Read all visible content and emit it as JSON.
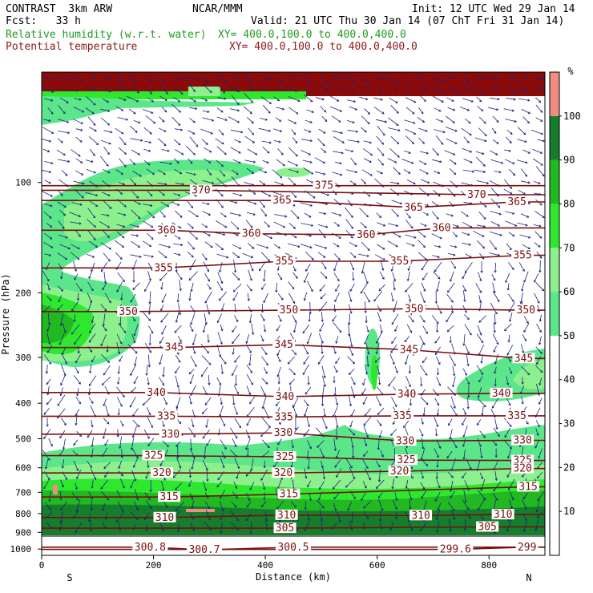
{
  "header": {
    "model": "CONTRAST  3km ARW",
    "org": "NCAR/MMM",
    "init": "Init: 12 UTC Wed 29 Jan 14",
    "fcst": "Fcst:   33 h",
    "valid": "Valid: 21 UTC Thu 30 Jan 14 (07 ChT Fri 31 Jan 14)",
    "field1": "Relative humidity (w.r.t. water)",
    "field1_xy": "XY= 400.0,100.0 to 400.0,400.0",
    "field2": "Potential temperature",
    "field2_xy": "XY= 400.0,100.0 to 400.0,400.0"
  },
  "colorbar": {
    "unit": "%",
    "ticks": [
      "10",
      "20",
      "30",
      "40",
      "50",
      "60",
      "70",
      "80",
      "90",
      "100"
    ],
    "bins": [
      {
        "from": 0,
        "to": 50,
        "color": "#ffffff"
      },
      {
        "from": 50,
        "to": 60,
        "color": "#5ce68a"
      },
      {
        "from": 60,
        "to": 70,
        "color": "#8cf08c"
      },
      {
        "from": 70,
        "to": 80,
        "color": "#2ee82e"
      },
      {
        "from": 80,
        "to": 90,
        "color": "#21b821"
      },
      {
        "from": 90,
        "to": 100,
        "color": "#157d2b"
      },
      {
        "from": 100,
        "to": 110,
        "color": "#f08c80"
      }
    ]
  },
  "chart_data": {
    "type": "heatmap",
    "xlabel": "Distance (km)",
    "ylabel": "Pressure (hPa)",
    "xlim": [
      0,
      900
    ],
    "ylim": [
      1040,
      50
    ],
    "y_scale": "log",
    "x_ticks": [
      "0",
      "200",
      "400",
      "600",
      "800"
    ],
    "y_ticks": [
      "100",
      "200",
      "300",
      "400",
      "500",
      "600",
      "700",
      "800",
      "900",
      "1000"
    ],
    "x_end_labels": {
      "left": "S",
      "right": "N"
    },
    "contour_labels": [
      {
        "text": "370",
        "x": 285,
        "p": 105
      },
      {
        "text": "375",
        "x": 505,
        "p": 102
      },
      {
        "text": "370",
        "x": 778,
        "p": 108
      },
      {
        "text": "365",
        "x": 430,
        "p": 112
      },
      {
        "text": "365",
        "x": 665,
        "p": 117
      },
      {
        "text": "365",
        "x": 850,
        "p": 113
      },
      {
        "text": "360",
        "x": 223,
        "p": 135
      },
      {
        "text": "360",
        "x": 375,
        "p": 138
      },
      {
        "text": "360",
        "x": 580,
        "p": 139
      },
      {
        "text": "360",
        "x": 715,
        "p": 133
      },
      {
        "text": "355",
        "x": 218,
        "p": 171
      },
      {
        "text": "355",
        "x": 434,
        "p": 164
      },
      {
        "text": "355",
        "x": 640,
        "p": 164
      },
      {
        "text": "355",
        "x": 860,
        "p": 158
      },
      {
        "text": "350",
        "x": 155,
        "p": 225
      },
      {
        "text": "350",
        "x": 442,
        "p": 223
      },
      {
        "text": "350",
        "x": 666,
        "p": 221
      },
      {
        "text": "350",
        "x": 866,
        "p": 223
      },
      {
        "text": "345",
        "x": 237,
        "p": 282
      },
      {
        "text": "345",
        "x": 433,
        "p": 277
      },
      {
        "text": "345",
        "x": 657,
        "p": 286
      },
      {
        "text": "345",
        "x": 862,
        "p": 302
      },
      {
        "text": "340",
        "x": 205,
        "p": 374
      },
      {
        "text": "340",
        "x": 435,
        "p": 384
      },
      {
        "text": "340",
        "x": 653,
        "p": 378
      },
      {
        "text": "340",
        "x": 822,
        "p": 376
      },
      {
        "text": "335",
        "x": 223,
        "p": 434
      },
      {
        "text": "335",
        "x": 433,
        "p": 436
      },
      {
        "text": "335",
        "x": 645,
        "p": 433
      },
      {
        "text": "335",
        "x": 850,
        "p": 433
      },
      {
        "text": "330",
        "x": 230,
        "p": 486
      },
      {
        "text": "330",
        "x": 432,
        "p": 482
      },
      {
        "text": "330",
        "x": 650,
        "p": 507
      },
      {
        "text": "330",
        "x": 860,
        "p": 505
      },
      {
        "text": "325",
        "x": 200,
        "p": 556
      },
      {
        "text": "325",
        "x": 435,
        "p": 560
      },
      {
        "text": "325",
        "x": 652,
        "p": 572
      },
      {
        "text": "325",
        "x": 860,
        "p": 573
      },
      {
        "text": "320",
        "x": 215,
        "p": 620
      },
      {
        "text": "320",
        "x": 432,
        "p": 620
      },
      {
        "text": "320",
        "x": 640,
        "p": 613
      },
      {
        "text": "320",
        "x": 860,
        "p": 603
      },
      {
        "text": "315",
        "x": 228,
        "p": 721
      },
      {
        "text": "315",
        "x": 442,
        "p": 708
      },
      {
        "text": "315",
        "x": 870,
        "p": 676
      },
      {
        "text": "310",
        "x": 220,
        "p": 820
      },
      {
        "text": "310",
        "x": 438,
        "p": 808
      },
      {
        "text": "310",
        "x": 678,
        "p": 810
      },
      {
        "text": "310",
        "x": 825,
        "p": 805
      },
      {
        "text": "305",
        "x": 435,
        "p": 877
      },
      {
        "text": "305",
        "x": 797,
        "p": 870
      },
      {
        "text": "300.8",
        "x": 194,
        "p": 988
      },
      {
        "text": "300.7",
        "x": 291,
        "p": 1005
      },
      {
        "text": "300.5",
        "x": 450,
        "p": 988
      },
      {
        "text": "299.6",
        "x": 740,
        "p": 1002
      },
      {
        "text": "299",
        "x": 868,
        "p": 988
      }
    ]
  }
}
